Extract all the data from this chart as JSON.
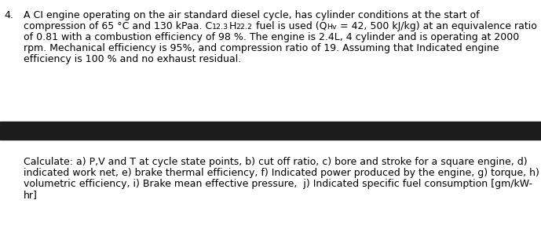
{
  "number": "4.",
  "line1": "A CI engine operating on the air standard diesel cycle, has cylinder conditions at the start of",
  "line2_pre": "compression of 65 °C and 130 kPaa. C",
  "line2_sub1": "12.3",
  "line2_mid1": "H",
  "line2_sub2": "22.2",
  "line2_mid2": " fuel is used (Q",
  "line2_sub3": "Hv",
  "line2_end": " = 42, 500 kJ/kg) at an equivalence ratio",
  "line3": "of 0.81 with a combustion efficiency of 98 %. The engine is 2.4L, 4 cylinder and is operating at 2000",
  "line4": "rpm. Mechanical efficiency is 95%, and compression ratio of 19. Assuming that Indicated engine",
  "line5": "efficiency is 100 % and no exhaust residual.",
  "calc_line1": "Calculate: a) P,V and T at cycle state points, b) cut off ratio, c) bore and stroke for a square engine, d)",
  "calc_line2": "indicated work net, e) brake thermal efficiency, f) Indicated power produced by the engine, g) torque, h)",
  "calc_line3": "volumetric efficiency, i) Brake mean effective pressure,  j) Indicated specific fuel consumption [gm/kW-",
  "calc_line4": "hr]",
  "bg_color": "#ffffff",
  "text_color": "#000000",
  "bar_color": "#1c1c1c",
  "font_size": 9.0,
  "sub_font_size": 6.8
}
